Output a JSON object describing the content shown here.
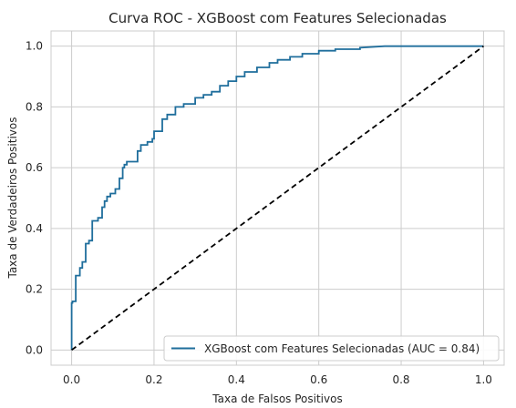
{
  "chart_data": {
    "type": "line",
    "title": "Curva ROC - XGBoost com Features Selecionadas",
    "xlabel": "Taxa de Falsos Positivos",
    "ylabel": "Taxa de Verdadeiros Positivos",
    "xlim": [
      -0.05,
      1.05
    ],
    "ylim": [
      -0.05,
      1.05
    ],
    "x_ticks": [
      "0.0",
      "0.2",
      "0.4",
      "0.6",
      "0.8",
      "1.0"
    ],
    "y_ticks": [
      "0.0",
      "0.2",
      "0.4",
      "0.6",
      "0.8",
      "1.0"
    ],
    "grid": true,
    "legend_position": "lower-right",
    "legend": [
      "XGBoost com Features Selecionadas (AUC = 0.84)"
    ],
    "series": [
      {
        "name": "XGBoost com Features Selecionadas (AUC = 0.84)",
        "color": "#1f6e9c",
        "style": "solid",
        "x": [
          0.0,
          0.0,
          0.002,
          0.002,
          0.01,
          0.01,
          0.02,
          0.02,
          0.026,
          0.026,
          0.034,
          0.034,
          0.042,
          0.042,
          0.05,
          0.05,
          0.064,
          0.064,
          0.074,
          0.074,
          0.08,
          0.08,
          0.086,
          0.086,
          0.094,
          0.094,
          0.106,
          0.106,
          0.116,
          0.116,
          0.124,
          0.124,
          0.128,
          0.128,
          0.134,
          0.134,
          0.16,
          0.16,
          0.168,
          0.168,
          0.184,
          0.184,
          0.196,
          0.196,
          0.2,
          0.2,
          0.22,
          0.22,
          0.232,
          0.232,
          0.252,
          0.252,
          0.272,
          0.272,
          0.3,
          0.3,
          0.32,
          0.32,
          0.34,
          0.34,
          0.36,
          0.36,
          0.38,
          0.38,
          0.4,
          0.4,
          0.42,
          0.42,
          0.45,
          0.45,
          0.48,
          0.48,
          0.5,
          0.5,
          0.53,
          0.53,
          0.56,
          0.56,
          0.6,
          0.6,
          0.64,
          0.64,
          0.7,
          0.7,
          0.76,
          1.0
        ],
        "y": [
          0.0,
          0.155,
          0.155,
          0.16,
          0.16,
          0.245,
          0.245,
          0.27,
          0.27,
          0.29,
          0.29,
          0.35,
          0.35,
          0.36,
          0.36,
          0.425,
          0.425,
          0.435,
          0.435,
          0.47,
          0.47,
          0.49,
          0.49,
          0.505,
          0.505,
          0.515,
          0.515,
          0.53,
          0.53,
          0.565,
          0.565,
          0.6,
          0.6,
          0.61,
          0.61,
          0.62,
          0.62,
          0.655,
          0.655,
          0.675,
          0.675,
          0.685,
          0.685,
          0.695,
          0.695,
          0.72,
          0.72,
          0.76,
          0.76,
          0.775,
          0.775,
          0.8,
          0.8,
          0.81,
          0.81,
          0.83,
          0.83,
          0.84,
          0.84,
          0.85,
          0.85,
          0.87,
          0.87,
          0.885,
          0.885,
          0.9,
          0.9,
          0.915,
          0.915,
          0.93,
          0.93,
          0.945,
          0.945,
          0.955,
          0.955,
          0.965,
          0.965,
          0.975,
          0.975,
          0.985,
          0.985,
          0.99,
          0.99,
          0.995,
          1.0,
          1.0
        ]
      },
      {
        "name": "",
        "color": "#000000",
        "style": "dashed",
        "x": [
          0.0,
          1.0
        ],
        "y": [
          0.0,
          1.0
        ]
      }
    ]
  }
}
